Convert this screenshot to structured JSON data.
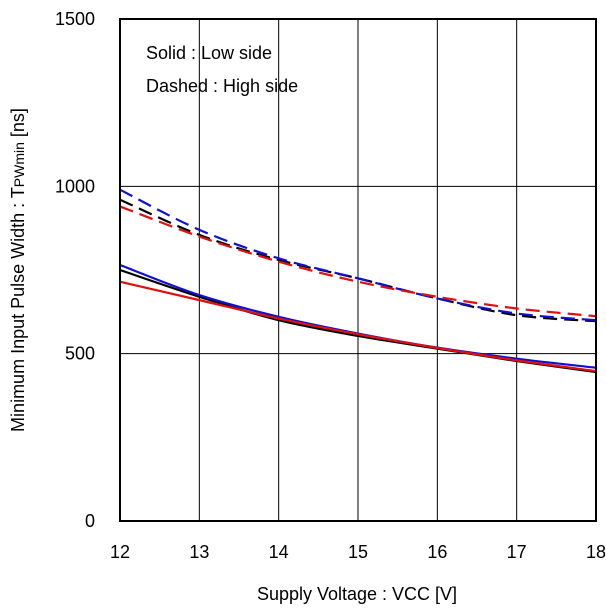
{
  "chart_data": {
    "type": "line",
    "xlabel": "Supply Voltage : VCC [V]",
    "ylabel_main": "Minimum Input Pulse Width : T",
    "ylabel_sub": "PWmin",
    "ylabel_unit": " [ns]",
    "xlim": [
      12,
      18
    ],
    "ylim": [
      0,
      1500
    ],
    "xticks": [
      "12",
      "13",
      "14",
      "15",
      "16",
      "17",
      "18"
    ],
    "yticks": [
      "0",
      "500",
      "1000",
      "1500"
    ],
    "grid": true,
    "annotations": {
      "line1": "Solid : Low side",
      "line2": "Dashed : High side"
    },
    "colors": {
      "black": "#000000",
      "blue": "#1010d0",
      "red": "#e01010"
    },
    "series": [
      {
        "color_key": "black",
        "style": "dashed",
        "x": [
          12,
          13,
          14,
          15,
          16,
          17,
          18
        ],
        "values": [
          960,
          855,
          780,
          725,
          665,
          615,
          597
        ]
      },
      {
        "color_key": "blue",
        "style": "dashed",
        "x": [
          12,
          13,
          14,
          15,
          16,
          17,
          18
        ],
        "values": [
          990,
          870,
          785,
          725,
          665,
          620,
          600
        ]
      },
      {
        "color_key": "red",
        "style": "dashed",
        "x": [
          12,
          13,
          14,
          15,
          16,
          17,
          18
        ],
        "values": [
          940,
          850,
          775,
          715,
          670,
          635,
          612
        ]
      },
      {
        "color_key": "black",
        "style": "solid",
        "x": [
          12,
          13,
          14,
          15,
          16,
          17,
          18
        ],
        "values": [
          750,
          670,
          600,
          553,
          515,
          478,
          445
        ]
      },
      {
        "color_key": "blue",
        "style": "solid",
        "x": [
          12,
          13,
          14,
          15,
          16,
          17,
          18
        ],
        "values": [
          765,
          675,
          610,
          560,
          518,
          485,
          458
        ]
      },
      {
        "color_key": "red",
        "style": "solid",
        "x": [
          12,
          13,
          14,
          15,
          16,
          17,
          18
        ],
        "values": [
          715,
          660,
          605,
          558,
          517,
          480,
          448
        ]
      }
    ]
  }
}
